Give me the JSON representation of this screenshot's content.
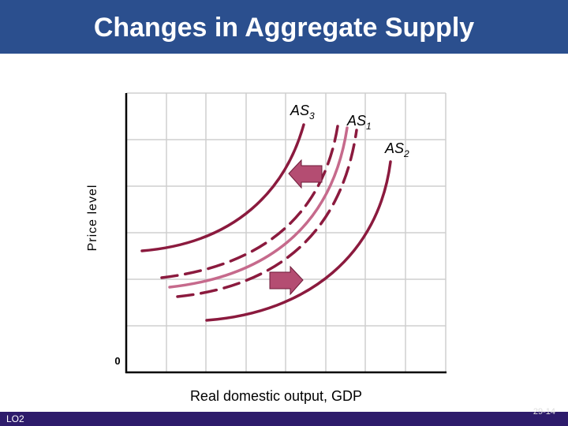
{
  "header": {
    "title": "Changes in Aggregate Supply"
  },
  "diagram": {
    "y_axis_label": "Price level",
    "x_axis_label": "Real domestic output, GDP",
    "origin_label": "0",
    "curves": [
      {
        "label": "AS",
        "subscript": "3"
      },
      {
        "label": "AS",
        "subscript": "1"
      },
      {
        "label": "AS",
        "subscript": "2"
      }
    ]
  },
  "footer": {
    "objective": "LO2",
    "page": "29-14"
  }
}
